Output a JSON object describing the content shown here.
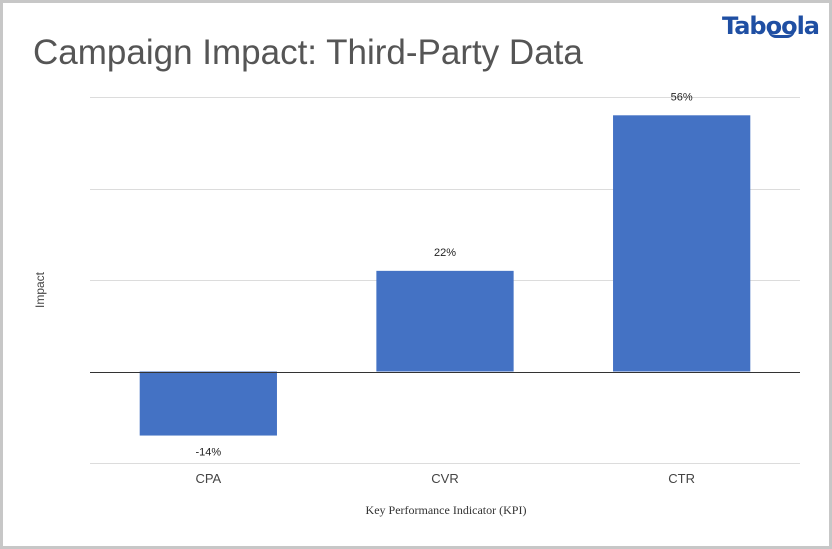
{
  "brand": {
    "logo_text": "Taboola",
    "color": "#1f4fa3"
  },
  "chart_data": {
    "type": "bar",
    "title": "Campaign Impact: Third-Party Data",
    "xlabel": "Key Performance Indicator (KPI)",
    "ylabel": "Impact",
    "categories": [
      "CPA",
      "CVR",
      "CTR"
    ],
    "values": [
      -14,
      22,
      56
    ],
    "data_labels": [
      "-14%",
      "22%",
      "56%"
    ],
    "unit": "%",
    "ylim": [
      -20,
      60
    ],
    "grid": true,
    "legend": "none",
    "bar_color": "#4472c4"
  }
}
